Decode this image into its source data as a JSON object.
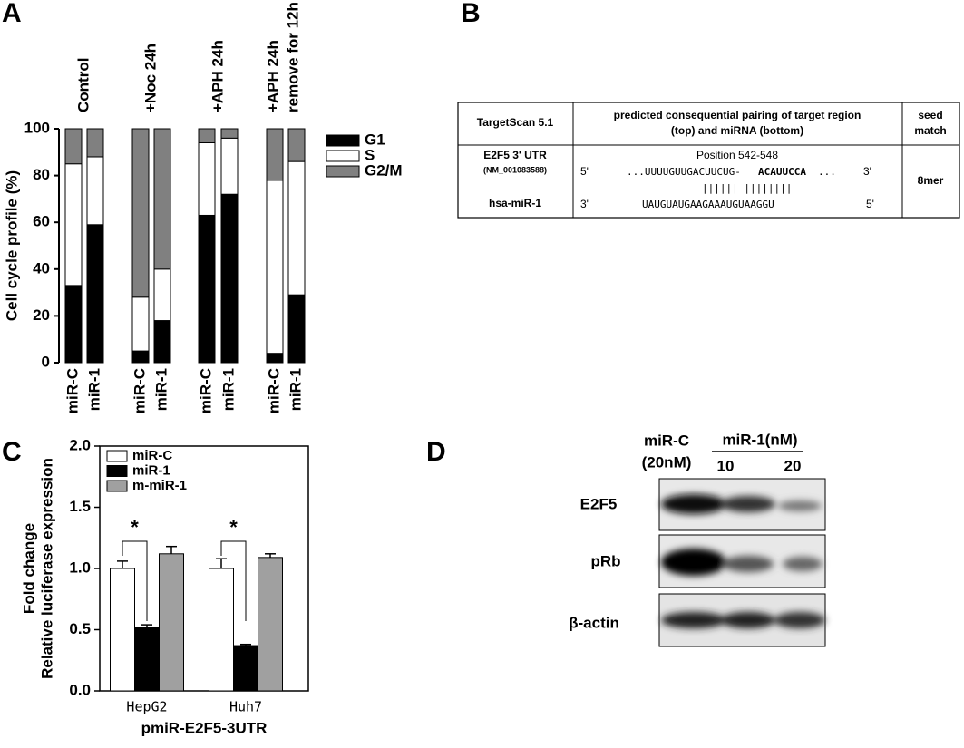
{
  "chart_data": [
    {
      "type": "stacked_bar",
      "panel_label": "A",
      "ylabel": "Cell cycle profile (%)",
      "categories": [
        "miR-C",
        "miR-1",
        "miR-C",
        "miR-1",
        "miR-C",
        "miR-1",
        "miR-C",
        "miR-1"
      ],
      "group_labels": [
        [
          "Control"
        ],
        [
          "+Noc 24h"
        ],
        [
          "+APH 24h"
        ],
        [
          "+APH 24h",
          "remove for 12h"
        ]
      ],
      "series": [
        {
          "name": "G1",
          "color": "#000000",
          "values": [
            33,
            59,
            5,
            18,
            63,
            72,
            4,
            29
          ]
        },
        {
          "name": "S",
          "color": "#ffffff",
          "values": [
            52,
            29,
            23,
            22,
            31,
            24,
            74,
            57
          ]
        },
        {
          "name": "G2/M",
          "color": "#808080",
          "values": [
            15,
            12,
            72,
            60,
            6,
            4,
            22,
            14
          ]
        }
      ],
      "ylim": [
        0,
        100
      ],
      "yticks": [
        0,
        20,
        40,
        60,
        80,
        100
      ],
      "legend": "right"
    },
    {
      "type": "bar",
      "panel_label": "C",
      "ylabel": [
        "Fold change",
        "Relative luciferase expression"
      ],
      "xlabel": "pmiR-E2F5-3UTR",
      "categories": [
        "HepG2",
        "Huh7"
      ],
      "series": [
        {
          "name": "miR-C",
          "color": "#ffffff",
          "values": [
            1.0,
            1.0
          ],
          "errors": [
            0.06,
            0.08
          ]
        },
        {
          "name": "miR-1",
          "color": "#000000",
          "values": [
            0.52,
            0.37
          ],
          "errors": [
            0.02,
            0.01
          ]
        },
        {
          "name": "m-miR-1",
          "color": "#a0a0a0",
          "values": [
            1.12,
            1.09
          ],
          "errors": [
            0.06,
            0.03
          ]
        }
      ],
      "ylim": [
        0,
        2
      ],
      "yticks": [
        {
          "value": 0,
          "label": "0.0"
        },
        {
          "value": 0.5,
          "label": "0.5"
        },
        {
          "value": 1,
          "label": "1.0"
        },
        {
          "value": 1.5,
          "label": "1.5"
        },
        {
          "value": 2,
          "label": "2.0"
        }
      ],
      "annotations": [
        "*",
        "*"
      ],
      "legend": "upper left"
    }
  ],
  "panel_b": {
    "panel_label": "B",
    "headers": [
      "TargetScan 5.1",
      [
        "predicted consequential pairing of target region",
        "(top) and miRNA (bottom)"
      ],
      [
        "seed",
        "match"
      ]
    ],
    "target": "E2F5 3' UTR",
    "accession": "(NM_001083588)",
    "mirna": "hsa-miR-1",
    "position": "Position 542-548",
    "top_5": "5'",
    "top_seq": "...UUUUGUUGACUUCUG-",
    "top_seed": "ACAUUCCA",
    "top_dots": "...",
    "top_3": "3'",
    "pairing": "||||||  ||||||||",
    "bottom_3": "3'",
    "bottom_seq": "UAUGUAUGAAGAAAUGUAAGGU",
    "bottom_5": "5'",
    "seed_match": "8mer"
  },
  "panel_d": {
    "panel_label": "D",
    "lanes": [
      "miR-C",
      "(20nM)",
      "miR-1(nM)",
      "10",
      "20"
    ],
    "rows": [
      "E2F5",
      "pRb",
      "β-actin"
    ]
  }
}
